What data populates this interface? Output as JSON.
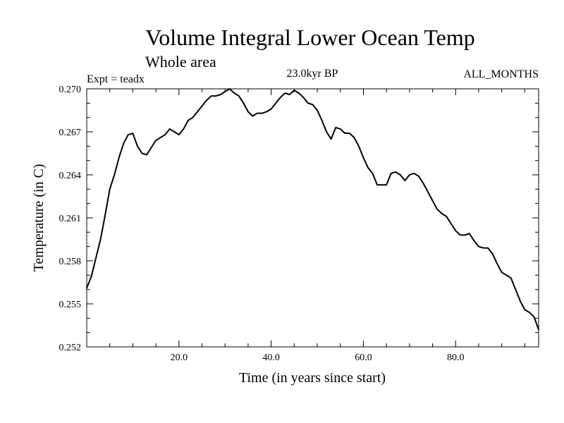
{
  "chart_data": {
    "type": "line",
    "title": "Volume Integral Lower Ocean Temp",
    "subtitle": "Whole area",
    "experiment": "Expt = teadx",
    "period": "23.0kyr BP",
    "months": "ALL_MONTHS",
    "xlabel": "Time (in years since start)",
    "ylabel": "Temperature (in C)",
    "xlim": [
      0,
      98
    ],
    "ylim": [
      0.252,
      0.27
    ],
    "xticks": [
      20,
      40,
      60,
      80
    ],
    "xtick_labels": [
      "20.0",
      "40.0",
      "60.0",
      "80.0"
    ],
    "yticks": [
      0.252,
      0.255,
      0.258,
      0.261,
      0.264,
      0.267,
      0.27
    ],
    "ytick_labels": [
      "0.252",
      "0.255",
      "0.258",
      "0.261",
      "0.264",
      "0.267",
      "0.270"
    ],
    "grid": false,
    "series": [
      {
        "name": "Lower Ocean Temp",
        "x": [
          0,
          1,
          2,
          3,
          4,
          5,
          6,
          7,
          8,
          9,
          10,
          11,
          12,
          13,
          14,
          15,
          16,
          17,
          18,
          19,
          20,
          21,
          22,
          23,
          24,
          25,
          26,
          27,
          28,
          29,
          30,
          31,
          32,
          33,
          34,
          35,
          36,
          37,
          38,
          39,
          40,
          41,
          42,
          43,
          44,
          45,
          46,
          47,
          48,
          49,
          50,
          51,
          52,
          53,
          54,
          55,
          56,
          57,
          58,
          59,
          60,
          61,
          62,
          63,
          64,
          65,
          66,
          67,
          68,
          69,
          70,
          71,
          72,
          73,
          74,
          75,
          76,
          77,
          78,
          79,
          80,
          81,
          82,
          83,
          84,
          85,
          86,
          87,
          88,
          89,
          90,
          91,
          92,
          93,
          94,
          95,
          96,
          97,
          98
        ],
        "values": [
          0.2561,
          0.2569,
          0.2582,
          0.2595,
          0.2612,
          0.263,
          0.264,
          0.2652,
          0.2662,
          0.2668,
          0.2669,
          0.266,
          0.2655,
          0.2654,
          0.2659,
          0.2664,
          0.2666,
          0.2668,
          0.2672,
          0.267,
          0.2668,
          0.2672,
          0.2678,
          0.268,
          0.2684,
          0.2688,
          0.2692,
          0.2695,
          0.2695,
          0.2696,
          0.2698,
          0.27,
          0.2697,
          0.2695,
          0.269,
          0.2684,
          0.2681,
          0.2683,
          0.2683,
          0.2684,
          0.2686,
          0.269,
          0.2694,
          0.2697,
          0.2696,
          0.2699,
          0.2697,
          0.2694,
          0.269,
          0.2689,
          0.2685,
          0.2678,
          0.267,
          0.2665,
          0.2673,
          0.2672,
          0.2669,
          0.2669,
          0.2666,
          0.266,
          0.2652,
          0.2645,
          0.2641,
          0.2633,
          0.2633,
          0.2633,
          0.2641,
          0.2642,
          0.264,
          0.2636,
          0.264,
          0.2641,
          0.2639,
          0.2634,
          0.2628,
          0.2622,
          0.2616,
          0.2613,
          0.2611,
          0.2606,
          0.2601,
          0.2598,
          0.2598,
          0.2599,
          0.2594,
          0.259,
          0.2589,
          0.2589,
          0.2585,
          0.2578,
          0.2572,
          0.257,
          0.2568,
          0.256,
          0.2552,
          0.2546,
          0.2544,
          0.2541,
          0.2532
        ]
      }
    ]
  }
}
